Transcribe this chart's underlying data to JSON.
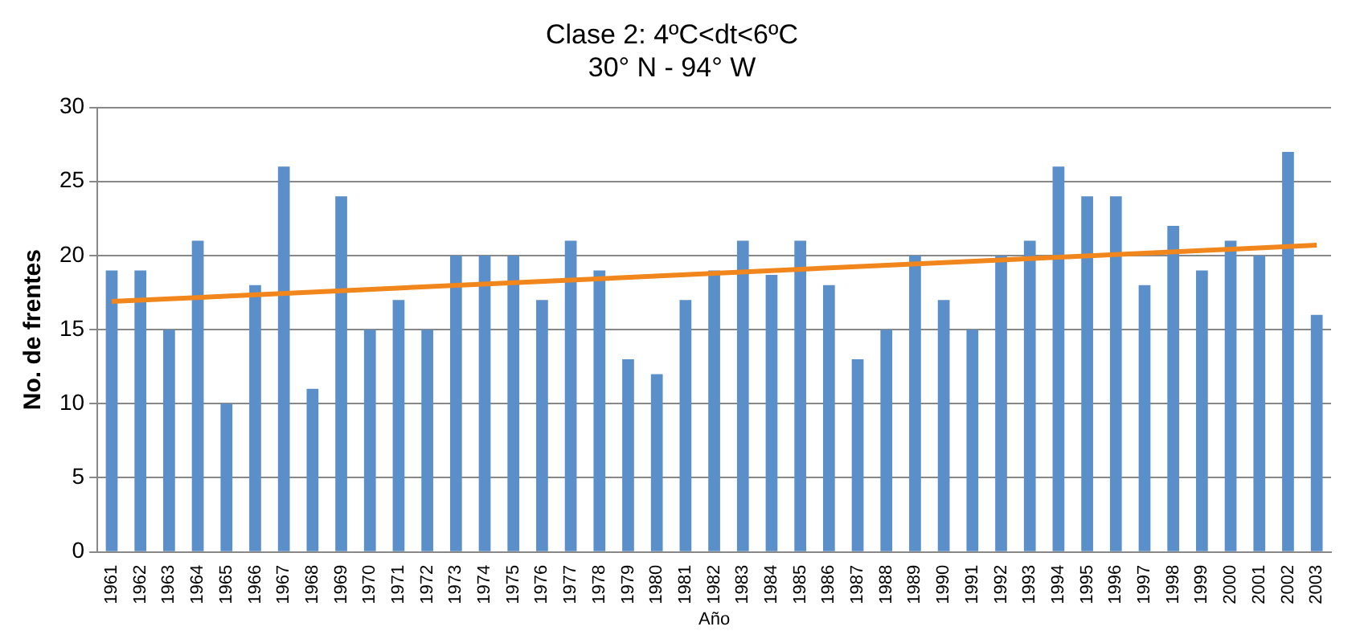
{
  "chart_data": {
    "type": "bar",
    "title": "Clase 2: 4ºC<dt<6ºC",
    "subtitle": "30° N - 94° W",
    "xlabel": "Año",
    "ylabel": "No. de frentes",
    "categories": [
      "1961",
      "1962",
      "1963",
      "1964",
      "1965",
      "1966",
      "1967",
      "1968",
      "1969",
      "1970",
      "1971",
      "1972",
      "1973",
      "1974",
      "1975",
      "1976",
      "1977",
      "1978",
      "1979",
      "1980",
      "1981",
      "1982",
      "1983",
      "1984",
      "1985",
      "1986",
      "1987",
      "1988",
      "1989",
      "1990",
      "1991",
      "1992",
      "1993",
      "1994",
      "1995",
      "1996",
      "1997",
      "1998",
      "1999",
      "2000",
      "2001",
      "2002",
      "2003"
    ],
    "series": [
      {
        "color": "#5b8fca",
        "values": [
          19,
          19,
          15,
          21,
          10,
          18,
          26,
          11,
          24,
          15,
          17,
          15,
          20,
          20,
          20,
          17,
          21,
          19,
          13,
          12,
          17,
          19,
          21,
          18.7,
          21,
          18,
          13,
          15,
          20,
          17,
          15,
          20,
          21,
          26,
          24,
          24,
          18,
          22,
          19,
          21,
          20,
          27,
          16
        ]
      },
      {
        "type": "line",
        "color": "#f0861c",
        "values": [
          16.9,
          null,
          null,
          null,
          null,
          null,
          null,
          null,
          null,
          null,
          null,
          null,
          null,
          null,
          null,
          null,
          null,
          null,
          null,
          null,
          null,
          null,
          null,
          null,
          null,
          null,
          null,
          null,
          null,
          null,
          null,
          null,
          null,
          null,
          null,
          null,
          null,
          null,
          null,
          null,
          null,
          null,
          20.7
        ]
      }
    ],
    "ylim": [
      0,
      30
    ],
    "yticks": [
      0,
      5,
      10,
      15,
      20,
      25,
      30
    ],
    "grid": "y",
    "legend": false
  }
}
